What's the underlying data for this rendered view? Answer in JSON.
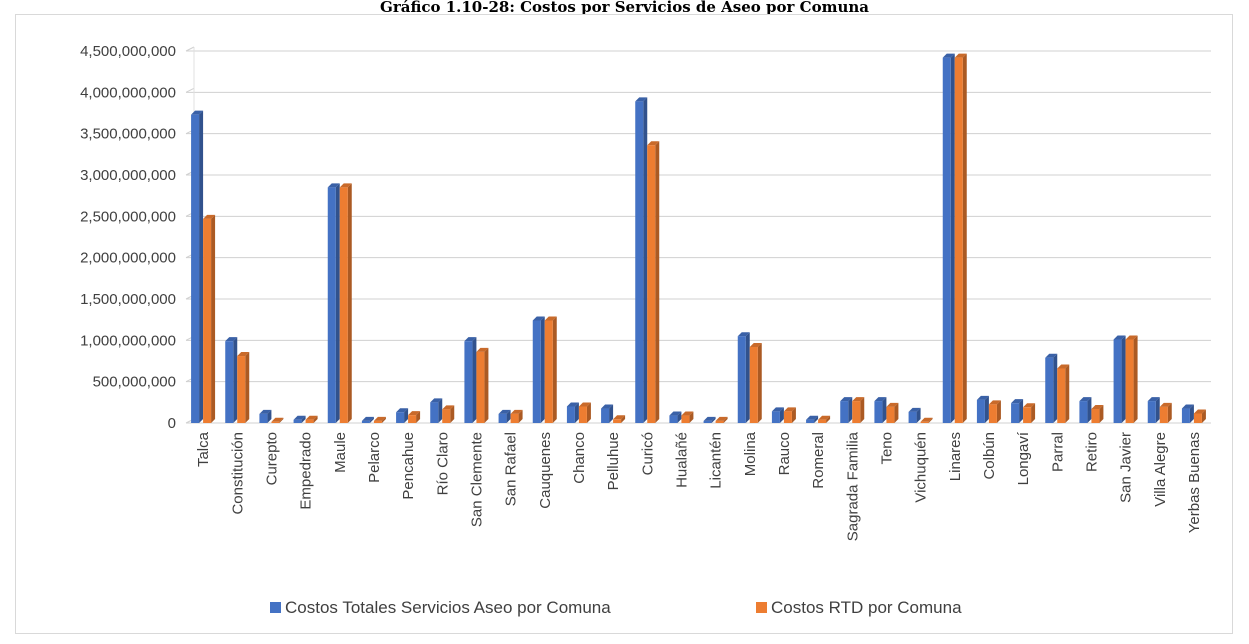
{
  "chart_data": {
    "type": "bar",
    "title": "Gráfico 1.10-28: Costos por Servicios de Aseo por Comuna",
    "xlabel": "",
    "ylabel": "",
    "ylim": [
      0,
      4500000000
    ],
    "yticks": [
      0,
      500000000,
      1000000000,
      1500000000,
      2000000000,
      2500000000,
      3000000000,
      3500000000,
      4000000000,
      4500000000
    ],
    "ytick_labels": [
      "0",
      "500,000,000",
      "1,000,000,000",
      "1,500,000,000",
      "2,000,000,000",
      "2,500,000,000",
      "3,000,000,000",
      "3,500,000,000",
      "4,000,000,000",
      "4,500,000,000"
    ],
    "grid": true,
    "legend_position": "bottom",
    "categories": [
      "Talca",
      "Constitución",
      "Curepto",
      "Empedrado",
      "Maule",
      "Pelarco",
      "Pencahue",
      "Río Claro",
      "San Clemente",
      "San Rafael",
      "Cauquenes",
      "Chanco",
      "Pelluhue",
      "Curicó",
      "Hualañé",
      "Licantén",
      "Molina",
      "Rauco",
      "Romeral",
      "Sagrada Familia",
      "Teno",
      "Vichuquén",
      "Linares",
      "Colbún",
      "Longaví",
      "Parral",
      "Retiro",
      "San Javier",
      "Villa Alegre",
      "Yerbas Buenas"
    ],
    "series": [
      {
        "name": "Costos Totales Servicios Aseo por Comuna",
        "color": "#4472c4",
        "values": [
          3730000000,
          990000000,
          110000000,
          40000000,
          2850000000,
          25000000,
          130000000,
          250000000,
          990000000,
          110000000,
          1240000000,
          200000000,
          175000000,
          3890000000,
          90000000,
          25000000,
          1050000000,
          140000000,
          40000000,
          265000000,
          265000000,
          135000000,
          4420000000,
          280000000,
          240000000,
          790000000,
          265000000,
          1010000000,
          265000000,
          175000000
        ]
      },
      {
        "name": "Costos RTD por Comuna",
        "color": "#ed7d31",
        "values": [
          2470000000,
          810000000,
          15000000,
          40000000,
          2850000000,
          25000000,
          95000000,
          165000000,
          860000000,
          110000000,
          1240000000,
          200000000,
          45000000,
          3360000000,
          90000000,
          25000000,
          920000000,
          140000000,
          40000000,
          265000000,
          195000000,
          15000000,
          4420000000,
          225000000,
          190000000,
          660000000,
          170000000,
          1010000000,
          195000000,
          115000000
        ]
      }
    ]
  }
}
